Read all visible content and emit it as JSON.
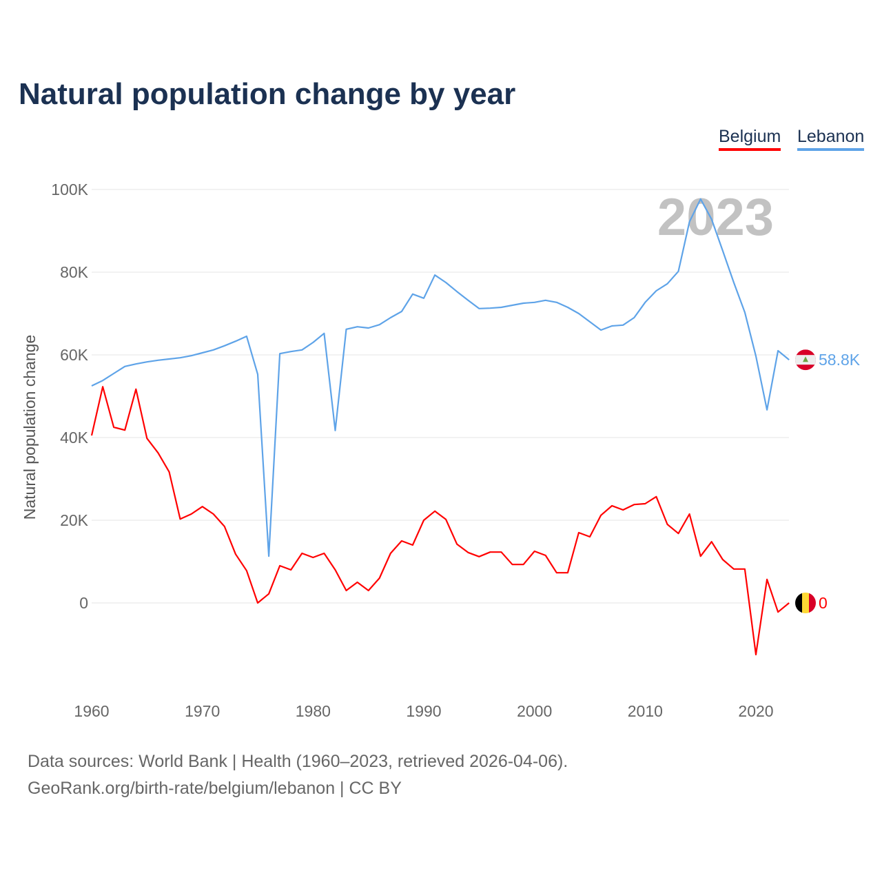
{
  "chart_data": {
    "type": "line",
    "title": "Natural population change by year",
    "xlabel": "",
    "ylabel": "Natural population change",
    "xlim": [
      1960,
      2023
    ],
    "ylim": [
      -20000,
      100000
    ],
    "x_ticks": [
      "1960",
      "1970",
      "1980",
      "1990",
      "2000",
      "2010",
      "2020"
    ],
    "y_ticks": [
      {
        "v": 0,
        "label": "0"
      },
      {
        "v": 20000,
        "label": "20K"
      },
      {
        "v": 40000,
        "label": "40K"
      },
      {
        "v": 60000,
        "label": "60K"
      },
      {
        "v": 80000,
        "label": "80K"
      },
      {
        "v": 100000,
        "label": "100K"
      }
    ],
    "grid": true,
    "legend_position": "top-right",
    "year_watermark": "2023",
    "x": [
      1960,
      1961,
      1962,
      1963,
      1964,
      1965,
      1966,
      1967,
      1968,
      1969,
      1970,
      1971,
      1972,
      1973,
      1974,
      1975,
      1976,
      1977,
      1978,
      1979,
      1980,
      1981,
      1982,
      1983,
      1984,
      1985,
      1986,
      1987,
      1988,
      1989,
      1990,
      1991,
      1992,
      1993,
      1994,
      1995,
      1996,
      1997,
      1998,
      1999,
      2000,
      2001,
      2002,
      2003,
      2004,
      2005,
      2006,
      2007,
      2008,
      2009,
      2010,
      2011,
      2012,
      2013,
      2014,
      2015,
      2016,
      2017,
      2018,
      2019,
      2020,
      2021,
      2022,
      2023
    ],
    "series": [
      {
        "name": "Belgium",
        "color": "#ff0000",
        "end_label": "0",
        "flag": "belgium-flag-icon",
        "values": [
          40500,
          52300,
          42500,
          41800,
          51700,
          39800,
          36300,
          31700,
          20300,
          21500,
          23300,
          21500,
          18500,
          11800,
          7800,
          0,
          2200,
          9000,
          8000,
          12000,
          11000,
          12000,
          8000,
          3000,
          5000,
          3000,
          6000,
          12000,
          15000,
          14000,
          20000,
          22200,
          20200,
          14200,
          12200,
          11200,
          12300,
          12300,
          9300,
          9300,
          12500,
          11500,
          7300,
          7300,
          17000,
          16000,
          21200,
          23500,
          22500,
          23800,
          24000,
          25700,
          19000,
          16800,
          21500,
          11300,
          14800,
          10500,
          8200,
          8200,
          -12500,
          5700,
          -2200,
          0
        ]
      },
      {
        "name": "Lebanon",
        "color": "#5ea3e8",
        "end_label": "58.8K",
        "flag": "lebanon-flag-icon",
        "values": [
          52500,
          53800,
          55500,
          57200,
          57800,
          58300,
          58700,
          59000,
          59300,
          59800,
          60500,
          61200,
          62200,
          63300,
          64500,
          55300,
          11300,
          60300,
          60800,
          61200,
          63000,
          65200,
          41700,
          66200,
          66800,
          66500,
          67300,
          69000,
          70500,
          74700,
          73700,
          79300,
          77500,
          75300,
          73200,
          71200,
          71300,
          71500,
          72000,
          72500,
          72700,
          73200,
          72700,
          71500,
          70000,
          68000,
          66000,
          67000,
          67200,
          69000,
          72700,
          75500,
          77200,
          80200,
          92200,
          97700,
          92800,
          85200,
          77500,
          70300,
          59700,
          46700,
          61000,
          58800
        ]
      }
    ]
  },
  "footer": {
    "line1": "Data sources: World Bank | Health (1960–2023, retrieved 2026-04-06).",
    "line2": "GeoRank.org/birth-rate/belgium/lebanon | CC BY"
  }
}
